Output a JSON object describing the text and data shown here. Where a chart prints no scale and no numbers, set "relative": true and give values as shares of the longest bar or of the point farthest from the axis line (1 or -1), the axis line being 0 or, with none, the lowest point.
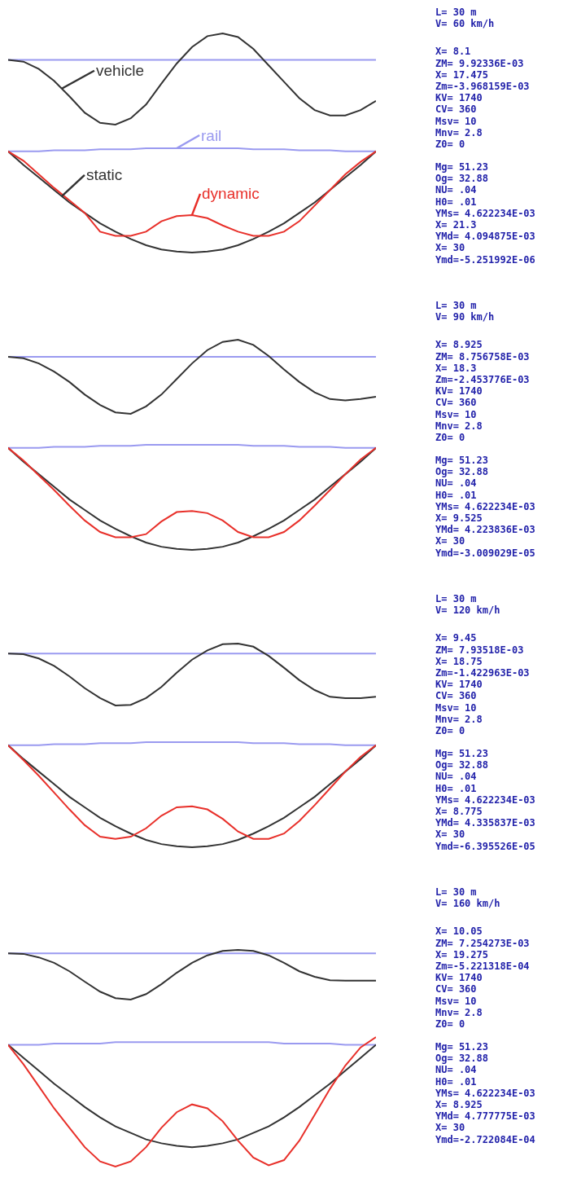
{
  "chart_data": [
    {
      "type": "line",
      "relative": true,
      "categories": [
        null,
        null,
        null,
        null,
        null,
        null,
        null,
        null,
        null,
        null,
        null,
        null,
        null,
        null,
        null,
        null,
        null,
        null,
        null,
        null,
        null,
        null,
        null,
        null,
        null
      ],
      "series": [
        {
          "color": "#9a9af0",
          "values": [
            0.71,
            0.71,
            0.71,
            0.71,
            0.71,
            0.71,
            0.71,
            0.71,
            0.71,
            0.71,
            0.71,
            0.71,
            0.71,
            0.71,
            0.71,
            0.71,
            0.71,
            0.71,
            0.71,
            0.71,
            0.71,
            0.71,
            0.71,
            0.71,
            0.71
          ]
        },
        {
          "name": "vehicle",
          "color": "#333333",
          "values": [
            0.71,
            0.69,
            0.61,
            0.48,
            0.31,
            0.13,
            0.02,
            0,
            0.07,
            0.22,
            0.45,
            0.67,
            0.85,
            0.97,
            1,
            0.96,
            0.83,
            0.65,
            0.47,
            0.29,
            0.16,
            0.1,
            0.1,
            0.16,
            0.26
          ]
        }
      ],
      "annotations": [
        "L= 30 m\nV= 60 km/h",
        "X= 8.1\nZM= 9.92336E-03\nX= 17.475\nZm=-3.968159E-03\nKV= 1740\nCV= 360\nMsv= 10\nMnv= 2.8\nZ0= 0"
      ]
    },
    {
      "type": "line",
      "relative": true,
      "categories": [
        null,
        null,
        null,
        null,
        null,
        null,
        null,
        null,
        null,
        null,
        null,
        null,
        null,
        null,
        null,
        null,
        null,
        null,
        null,
        null,
        null,
        null,
        null,
        null,
        null
      ],
      "series": [
        {
          "name": "rail",
          "color": "#9a9af0",
          "values": [
            0.97,
            0.97,
            0.97,
            0.98,
            0.98,
            0.98,
            0.99,
            0.99,
            0.99,
            1,
            1,
            1,
            1,
            1,
            1,
            1,
            0.99,
            0.99,
            0.99,
            0.98,
            0.98,
            0.98,
            0.97,
            0.97,
            0.97
          ]
        },
        {
          "name": "static",
          "color": "#333333",
          "values": [
            0.97,
            0.84,
            0.72,
            0.6,
            0.48,
            0.38,
            0.28,
            0.2,
            0.13,
            0.07,
            0.03,
            0.01,
            0,
            0.01,
            0.03,
            0.07,
            0.13,
            0.2,
            0.28,
            0.38,
            0.48,
            0.6,
            0.72,
            0.84,
            0.97
          ]
        },
        {
          "name": "dynamic",
          "color": "#e8302a",
          "values": [
            0.97,
            0.88,
            0.75,
            0.62,
            0.5,
            0.38,
            0.2,
            0.16,
            0.16,
            0.2,
            0.3,
            0.35,
            0.36,
            0.33,
            0.26,
            0.2,
            0.16,
            0.16,
            0.2,
            0.3,
            0.45,
            0.6,
            0.75,
            0.87,
            0.97
          ]
        }
      ],
      "annotations": [
        "Mg= 51.23\nOg= 32.88\nNU= .04\nH0= .01\nYMs= 4.622234E-03\nX= 21.3\nYMd= 4.094875E-03\nX= 30\nYmd=-5.251992E-06"
      ]
    },
    {
      "type": "line",
      "relative": true,
      "categories": [
        null,
        null,
        null,
        null,
        null,
        null,
        null,
        null,
        null,
        null,
        null,
        null,
        null,
        null,
        null,
        null,
        null,
        null,
        null,
        null,
        null,
        null,
        null,
        null,
        null
      ],
      "series": [
        {
          "color": "#9a9af0",
          "values": [
            0.77,
            0.77,
            0.77,
            0.77,
            0.77,
            0.77,
            0.77,
            0.77,
            0.77,
            0.77,
            0.77,
            0.77,
            0.77,
            0.77,
            0.77,
            0.77,
            0.77,
            0.77,
            0.77,
            0.77,
            0.77,
            0.77,
            0.77,
            0.77,
            0.77
          ]
        },
        {
          "color": "#333333",
          "values": [
            0.77,
            0.75,
            0.68,
            0.57,
            0.43,
            0.26,
            0.12,
            0.02,
            0,
            0.1,
            0.26,
            0.47,
            0.68,
            0.86,
            0.97,
            1,
            0.93,
            0.78,
            0.6,
            0.43,
            0.29,
            0.2,
            0.18,
            0.2,
            0.23
          ]
        }
      ],
      "annotations": [
        "L= 30 m\nV= 90 km/h",
        "X= 8.925\nZM= 8.756758E-03\nX= 18.3\nZm=-2.453776E-03\nKV= 1740\nCV= 360\nMsv= 10\nMnv= 2.8\nZ0= 0"
      ]
    },
    {
      "type": "line",
      "relative": true,
      "categories": [
        null,
        null,
        null,
        null,
        null,
        null,
        null,
        null,
        null,
        null,
        null,
        null,
        null,
        null,
        null,
        null,
        null,
        null,
        null,
        null,
        null,
        null,
        null,
        null,
        null
      ],
      "series": [
        {
          "color": "#9a9af0",
          "values": [
            0.97,
            0.97,
            0.97,
            0.98,
            0.98,
            0.98,
            0.99,
            0.99,
            0.99,
            1,
            1,
            1,
            1,
            1,
            1,
            1,
            0.99,
            0.99,
            0.99,
            0.98,
            0.98,
            0.98,
            0.97,
            0.97,
            0.97
          ]
        },
        {
          "color": "#333333",
          "values": [
            0.97,
            0.84,
            0.72,
            0.6,
            0.48,
            0.38,
            0.28,
            0.2,
            0.13,
            0.07,
            0.03,
            0.01,
            0,
            0.01,
            0.03,
            0.07,
            0.13,
            0.2,
            0.28,
            0.38,
            0.48,
            0.6,
            0.72,
            0.84,
            0.97
          ]
        },
        {
          "color": "#e8302a",
          "values": [
            0.97,
            0.85,
            0.71,
            0.57,
            0.42,
            0.28,
            0.17,
            0.12,
            0.12,
            0.15,
            0.27,
            0.36,
            0.37,
            0.35,
            0.28,
            0.17,
            0.12,
            0.12,
            0.17,
            0.28,
            0.42,
            0.57,
            0.72,
            0.86,
            0.97
          ]
        }
      ],
      "annotations": [
        "Mg= 51.23\nOg= 32.88\nNU= .04\nH0= .01\nYMs= 4.622234E-03\nX= 9.525\nYMd= 4.223836E-03\nX= 30\nYmd=-3.009029E-05"
      ]
    },
    {
      "type": "line",
      "relative": true,
      "categories": [
        null,
        null,
        null,
        null,
        null,
        null,
        null,
        null,
        null,
        null,
        null,
        null,
        null,
        null,
        null,
        null,
        null,
        null,
        null,
        null,
        null,
        null,
        null,
        null,
        null
      ],
      "series": [
        {
          "color": "#9a9af0",
          "values": [
            0.84,
            0.84,
            0.84,
            0.84,
            0.84,
            0.84,
            0.84,
            0.84,
            0.84,
            0.84,
            0.84,
            0.84,
            0.84,
            0.84,
            0.84,
            0.84,
            0.84,
            0.84,
            0.84,
            0.84,
            0.84,
            0.84,
            0.84,
            0.84,
            0.84
          ]
        },
        {
          "color": "#333333",
          "values": [
            0.84,
            0.83,
            0.76,
            0.64,
            0.47,
            0.28,
            0.12,
            0,
            0.01,
            0.12,
            0.3,
            0.53,
            0.74,
            0.89,
            0.99,
            1,
            0.95,
            0.8,
            0.61,
            0.41,
            0.25,
            0.14,
            0.12,
            0.12,
            0.14
          ]
        }
      ],
      "annotations": [
        "L= 30 m\nV= 120 km/h",
        "X= 9.45\nZM= 7.93518E-03\nX= 18.75\nZm=-1.422963E-03\nKV= 1740\nCV= 360\nMsv= 10\nMnv= 2.8\nZ0= 0"
      ]
    },
    {
      "type": "line",
      "relative": true,
      "categories": [
        null,
        null,
        null,
        null,
        null,
        null,
        null,
        null,
        null,
        null,
        null,
        null,
        null,
        null,
        null,
        null,
        null,
        null,
        null,
        null,
        null,
        null,
        null,
        null,
        null
      ],
      "series": [
        {
          "color": "#9a9af0",
          "values": [
            0.97,
            0.97,
            0.97,
            0.98,
            0.98,
            0.98,
            0.99,
            0.99,
            0.99,
            1,
            1,
            1,
            1,
            1,
            1,
            1,
            0.99,
            0.99,
            0.99,
            0.98,
            0.98,
            0.98,
            0.97,
            0.97,
            0.97
          ]
        },
        {
          "color": "#333333",
          "values": [
            0.97,
            0.84,
            0.72,
            0.6,
            0.48,
            0.38,
            0.28,
            0.2,
            0.13,
            0.07,
            0.03,
            0.01,
            0,
            0.01,
            0.03,
            0.07,
            0.13,
            0.2,
            0.28,
            0.38,
            0.48,
            0.6,
            0.72,
            0.84,
            0.97
          ]
        },
        {
          "color": "#e8302a",
          "values": [
            0.97,
            0.83,
            0.68,
            0.52,
            0.36,
            0.21,
            0.1,
            0.08,
            0.1,
            0.18,
            0.3,
            0.38,
            0.39,
            0.36,
            0.27,
            0.15,
            0.08,
            0.08,
            0.13,
            0.25,
            0.4,
            0.56,
            0.72,
            0.86,
            0.97
          ]
        }
      ],
      "annotations": [
        "Mg= 51.23\nOg= 32.88\nNU= .04\nH0= .01\nYMs= 4.622234E-03\nX= 8.775\nYMd= 4.335837E-03\nX= 30\nYmd=-6.395526E-05"
      ]
    },
    {
      "type": "line",
      "relative": true,
      "categories": [
        null,
        null,
        null,
        null,
        null,
        null,
        null,
        null,
        null,
        null,
        null,
        null,
        null,
        null,
        null,
        null,
        null,
        null,
        null,
        null,
        null,
        null,
        null,
        null,
        null
      ],
      "series": [
        {
          "color": "#9a9af0",
          "values": [
            0.93,
            0.93,
            0.93,
            0.93,
            0.93,
            0.93,
            0.93,
            0.93,
            0.93,
            0.93,
            0.93,
            0.93,
            0.93,
            0.93,
            0.93,
            0.93,
            0.93,
            0.93,
            0.93,
            0.93,
            0.93,
            0.93,
            0.93,
            0.93,
            0.93
          ]
        },
        {
          "color": "#333333",
          "values": [
            0.93,
            0.92,
            0.85,
            0.74,
            0.57,
            0.36,
            0.16,
            0.03,
            0,
            0.11,
            0.31,
            0.54,
            0.74,
            0.89,
            0.98,
            1,
            0.98,
            0.89,
            0.74,
            0.57,
            0.46,
            0.39,
            0.38,
            0.38,
            0.38
          ]
        }
      ],
      "annotations": [
        "L= 30 m\nV= 160 km/h",
        "X= 10.05\nZM= 7.254273E-03\nX= 19.275\nZm=-5.221318E-04\nKV= 1740\nCV= 360\nMsv= 10\nMnv= 2.8\nZ0= 0"
      ]
    },
    {
      "type": "line",
      "relative": true,
      "categories": [
        null,
        null,
        null,
        null,
        null,
        null,
        null,
        null,
        null,
        null,
        null,
        null,
        null,
        null,
        null,
        null,
        null,
        null,
        null,
        null,
        null,
        null,
        null,
        null,
        null
      ],
      "series": [
        {
          "color": "#9a9af0",
          "values": [
            0.94,
            0.94,
            0.94,
            0.95,
            0.95,
            0.95,
            0.95,
            0.96,
            0.96,
            0.96,
            0.96,
            0.96,
            0.96,
            0.96,
            0.96,
            0.96,
            0.96,
            0.96,
            0.95,
            0.95,
            0.95,
            0.95,
            0.94,
            0.94,
            0.94
          ]
        },
        {
          "color": "#333333",
          "values": [
            0.94,
            0.84,
            0.74,
            0.64,
            0.55,
            0.46,
            0.38,
            0.31,
            0.26,
            0.21,
            0.18,
            0.16,
            0.15,
            0.16,
            0.18,
            0.21,
            0.26,
            0.31,
            0.38,
            0.46,
            0.55,
            0.64,
            0.74,
            0.84,
            0.94
          ]
        },
        {
          "color": "#e8302a",
          "values": [
            0.94,
            0.79,
            0.62,
            0.45,
            0.3,
            0.15,
            0.04,
            0,
            0.04,
            0.15,
            0.3,
            0.42,
            0.48,
            0.45,
            0.35,
            0.2,
            0.07,
            0.01,
            0.05,
            0.2,
            0.4,
            0.6,
            0.78,
            0.92,
            1
          ]
        }
      ],
      "annotations": [
        "Mg= 51.23\nOg= 32.88\nNU= .04\nH0= .01\nYMs= 4.622234E-03\nX= 8.925\nYMd= 4.777775E-03\nX= 30\nYmd=-2.722084E-04"
      ]
    }
  ]
}
